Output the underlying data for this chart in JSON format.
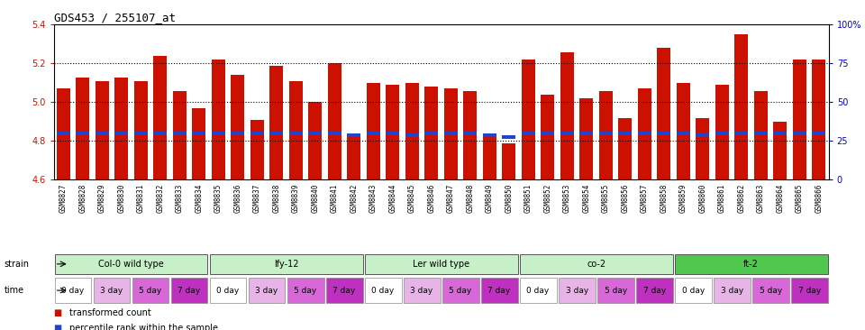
{
  "title": "GDS453 / 255107_at",
  "samples": [
    "GSM8827",
    "GSM8828",
    "GSM8829",
    "GSM8830",
    "GSM8831",
    "GSM8832",
    "GSM8833",
    "GSM8834",
    "GSM8835",
    "GSM8836",
    "GSM8837",
    "GSM8838",
    "GSM8839",
    "GSM8840",
    "GSM8841",
    "GSM8842",
    "GSM8843",
    "GSM8844",
    "GSM8845",
    "GSM8846",
    "GSM8847",
    "GSM8848",
    "GSM8849",
    "GSM8850",
    "GSM8851",
    "GSM8852",
    "GSM8853",
    "GSM8854",
    "GSM8855",
    "GSM8856",
    "GSM8857",
    "GSM8858",
    "GSM8859",
    "GSM8860",
    "GSM8861",
    "GSM8862",
    "GSM8863",
    "GSM8864",
    "GSM8865",
    "GSM8866"
  ],
  "bar_values": [
    5.07,
    5.13,
    5.11,
    5.13,
    5.11,
    5.24,
    5.06,
    4.97,
    5.22,
    5.14,
    4.91,
    5.19,
    5.11,
    5.0,
    5.2,
    4.83,
    5.1,
    5.09,
    5.1,
    5.08,
    5.07,
    5.06,
    4.82,
    4.79,
    5.22,
    5.04,
    5.26,
    5.02,
    5.06,
    4.92,
    5.07,
    5.28,
    5.1,
    4.92,
    5.09,
    5.35,
    5.06,
    4.9,
    5.22,
    5.22
  ],
  "percentile_values": [
    4.84,
    4.84,
    4.84,
    4.84,
    4.84,
    4.84,
    4.84,
    4.84,
    4.84,
    4.84,
    4.84,
    4.84,
    4.84,
    4.84,
    4.84,
    4.83,
    4.84,
    4.84,
    4.83,
    4.84,
    4.84,
    4.84,
    4.83,
    4.82,
    4.84,
    4.84,
    4.84,
    4.84,
    4.84,
    4.84,
    4.84,
    4.84,
    4.84,
    4.83,
    4.84,
    4.84,
    4.84,
    4.84,
    4.84,
    4.84
  ],
  "strains": [
    {
      "label": "Col-0 wild type",
      "start": 0,
      "end": 8,
      "color": "#c8f0c8"
    },
    {
      "label": "lfy-12",
      "start": 8,
      "end": 16,
      "color": "#c8f0c8"
    },
    {
      "label": "Ler wild type",
      "start": 16,
      "end": 24,
      "color": "#c8f0c8"
    },
    {
      "label": "co-2",
      "start": 24,
      "end": 32,
      "color": "#c8f0c8"
    },
    {
      "label": "ft-2",
      "start": 32,
      "end": 40,
      "color": "#50c850"
    }
  ],
  "time_colors": [
    "#ffffff",
    "#e8b4e8",
    "#d868d8",
    "#c030c0"
  ],
  "time_labels": [
    "0 day",
    "3 day",
    "5 day",
    "7 day"
  ],
  "ylim": [
    4.6,
    5.4
  ],
  "yticks": [
    4.6,
    4.8,
    5.0,
    5.2,
    5.4
  ],
  "right_ytick_pcts": [
    0,
    25,
    50,
    75,
    100
  ],
  "right_ytick_labels": [
    "0",
    "25",
    "50",
    "75",
    "100%"
  ],
  "bar_color": "#cc1100",
  "percentile_color": "#2244cc",
  "dotted_lines": [
    4.8,
    5.0,
    5.2
  ],
  "legend_items": [
    {
      "color": "#cc1100",
      "label": "transformed count"
    },
    {
      "color": "#2244cc",
      "label": "percentile rank within the sample"
    }
  ],
  "xtick_bg": "#d8d8d8",
  "strain_label_color": "#000000",
  "tick_fontsize": 7,
  "xtick_fontsize": 5.5
}
